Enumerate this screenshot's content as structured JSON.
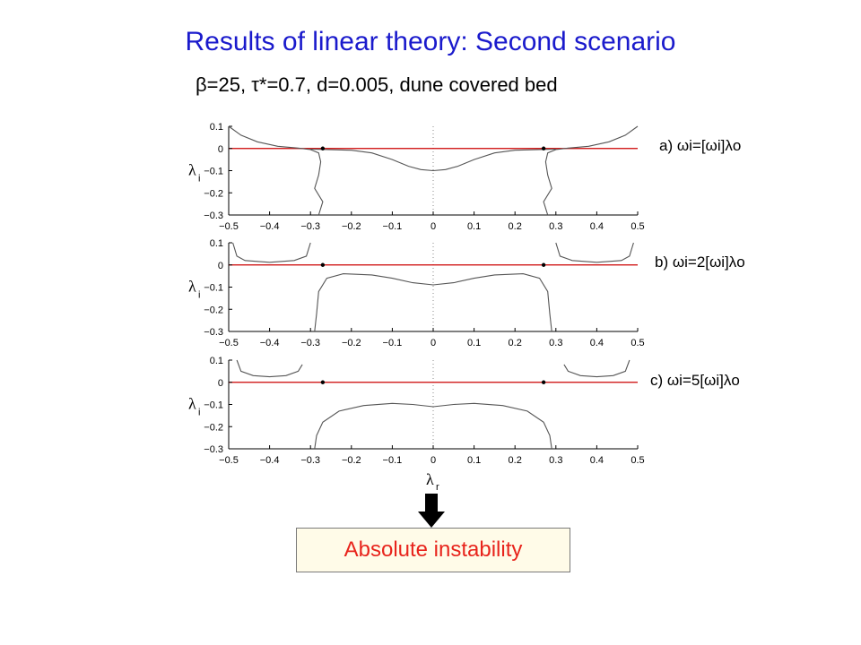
{
  "title": "Results of linear theory: Second scenario",
  "subtitle": "β=25, τ*=0.7, d=0.005, dune covered bed",
  "result_box": "Absolute instability",
  "colors": {
    "title": "#1a1acc",
    "result_text": "#e8241c",
    "zero_line": "#cc0000",
    "curve": "#555555"
  },
  "chart_data": [
    {
      "type": "line",
      "panel_label": "a) ωi=[ωi]λo",
      "ylabel": "λi",
      "xlabel": "",
      "xlim": [
        -0.5,
        0.5
      ],
      "ylim": [
        -0.3,
        0.1
      ],
      "xticks": [
        "−0.5",
        "−0.4",
        "−0.3",
        "−0.2",
        "−0.1",
        "0",
        "0.1",
        "0.2",
        "0.3",
        "0.4",
        "0.5"
      ],
      "yticks": [
        "0.1",
        "0",
        "−0.1",
        "−0.2",
        "−0.3"
      ],
      "saddle_points": [
        {
          "x": -0.27,
          "y": 0
        },
        {
          "x": 0.27,
          "y": 0
        }
      ],
      "series": [
        {
          "points": [
            [
              -0.5,
              0.1
            ],
            [
              -0.47,
              0.06
            ],
            [
              -0.43,
              0.03
            ],
            [
              -0.38,
              0.01
            ],
            [
              -0.33,
              0.002
            ],
            [
              -0.3,
              -0.005
            ],
            [
              -0.28,
              -0.02
            ],
            [
              -0.275,
              -0.06
            ],
            [
              -0.28,
              -0.12
            ],
            [
              -0.29,
              -0.18
            ],
            [
              -0.27,
              -0.24
            ],
            [
              -0.28,
              -0.3
            ]
          ]
        },
        {
          "points": [
            [
              0.5,
              0.1
            ],
            [
              0.47,
              0.06
            ],
            [
              0.43,
              0.03
            ],
            [
              0.38,
              0.01
            ],
            [
              0.33,
              0.002
            ],
            [
              0.3,
              -0.005
            ],
            [
              0.28,
              -0.02
            ],
            [
              0.275,
              -0.06
            ],
            [
              0.28,
              -0.12
            ],
            [
              0.29,
              -0.18
            ],
            [
              0.27,
              -0.24
            ],
            [
              0.28,
              -0.3
            ]
          ]
        },
        {
          "points": [
            [
              -0.3,
              -0.003
            ],
            [
              -0.2,
              -0.008
            ],
            [
              -0.15,
              -0.02
            ],
            [
              -0.1,
              -0.05
            ],
            [
              -0.06,
              -0.08
            ],
            [
              -0.03,
              -0.095
            ],
            [
              0,
              -0.1
            ],
            [
              0.03,
              -0.095
            ],
            [
              0.06,
              -0.08
            ],
            [
              0.1,
              -0.05
            ],
            [
              0.15,
              -0.02
            ],
            [
              0.2,
              -0.008
            ],
            [
              0.3,
              -0.003
            ]
          ]
        }
      ]
    },
    {
      "type": "line",
      "panel_label": "b) ωi=2[ωi]λo",
      "ylabel": "λi",
      "xlabel": "",
      "xlim": [
        -0.5,
        0.5
      ],
      "ylim": [
        -0.3,
        0.1
      ],
      "xticks": [
        "−0.5",
        "−0.4",
        "−0.3",
        "−0.2",
        "−0.1",
        "0",
        "0.1",
        "0.2",
        "0.3",
        "0.4",
        "0.5"
      ],
      "yticks": [
        "0.1",
        "0",
        "−0.1",
        "−0.2",
        "−0.3"
      ],
      "saddle_points": [
        {
          "x": -0.27,
          "y": 0
        },
        {
          "x": 0.27,
          "y": 0
        }
      ],
      "series": [
        {
          "points": [
            [
              -0.49,
              0.1
            ],
            [
              -0.48,
              0.04
            ],
            [
              -0.46,
              0.02
            ],
            [
              -0.4,
              0.012
            ],
            [
              -0.34,
              0.02
            ],
            [
              -0.31,
              0.04
            ],
            [
              -0.3,
              0.1
            ]
          ]
        },
        {
          "points": [
            [
              0.49,
              0.1
            ],
            [
              0.48,
              0.04
            ],
            [
              0.46,
              0.02
            ],
            [
              0.4,
              0.012
            ],
            [
              0.34,
              0.02
            ],
            [
              0.31,
              0.04
            ],
            [
              0.3,
              0.1
            ]
          ]
        },
        {
          "points": [
            [
              -0.29,
              -0.3
            ],
            [
              -0.285,
              -0.22
            ],
            [
              -0.28,
              -0.12
            ],
            [
              -0.26,
              -0.06
            ],
            [
              -0.22,
              -0.04
            ],
            [
              -0.15,
              -0.045
            ],
            [
              -0.1,
              -0.06
            ],
            [
              -0.05,
              -0.08
            ],
            [
              0,
              -0.09
            ],
            [
              0.05,
              -0.08
            ],
            [
              0.1,
              -0.06
            ],
            [
              0.15,
              -0.045
            ],
            [
              0.22,
              -0.04
            ],
            [
              0.26,
              -0.06
            ],
            [
              0.28,
              -0.12
            ],
            [
              0.285,
              -0.22
            ],
            [
              0.29,
              -0.3
            ]
          ]
        }
      ]
    },
    {
      "type": "line",
      "panel_label": "c) ωi=5[ωi]λo",
      "ylabel": "λi",
      "xlabel": "λr",
      "xlim": [
        -0.5,
        0.5
      ],
      "ylim": [
        -0.3,
        0.1
      ],
      "xticks": [
        "−0.5",
        "−0.4",
        "−0.3",
        "−0.2",
        "−0.1",
        "0",
        "0.1",
        "0.2",
        "0.3",
        "0.4",
        "0.5"
      ],
      "yticks": [
        "0.1",
        "0",
        "−0.1",
        "−0.2",
        "−0.3"
      ],
      "saddle_points": [
        {
          "x": -0.27,
          "y": 0
        },
        {
          "x": 0.27,
          "y": 0
        }
      ],
      "series": [
        {
          "points": [
            [
              -0.48,
              0.1
            ],
            [
              -0.47,
              0.05
            ],
            [
              -0.44,
              0.03
            ],
            [
              -0.4,
              0.025
            ],
            [
              -0.36,
              0.03
            ],
            [
              -0.33,
              0.05
            ],
            [
              -0.32,
              0.08
            ]
          ]
        },
        {
          "points": [
            [
              0.48,
              0.1
            ],
            [
              0.47,
              0.05
            ],
            [
              0.44,
              0.03
            ],
            [
              0.4,
              0.025
            ],
            [
              0.36,
              0.03
            ],
            [
              0.33,
              0.05
            ],
            [
              0.32,
              0.08
            ]
          ]
        },
        {
          "points": [
            [
              -0.29,
              -0.3
            ],
            [
              -0.285,
              -0.24
            ],
            [
              -0.27,
              -0.18
            ],
            [
              -0.23,
              -0.13
            ],
            [
              -0.17,
              -0.105
            ],
            [
              -0.1,
              -0.095
            ],
            [
              -0.05,
              -0.1
            ],
            [
              0,
              -0.11
            ],
            [
              0.05,
              -0.1
            ],
            [
              0.1,
              -0.095
            ],
            [
              0.17,
              -0.105
            ],
            [
              0.23,
              -0.13
            ],
            [
              0.27,
              -0.18
            ],
            [
              0.285,
              -0.24
            ],
            [
              0.29,
              -0.3
            ]
          ]
        }
      ]
    }
  ]
}
